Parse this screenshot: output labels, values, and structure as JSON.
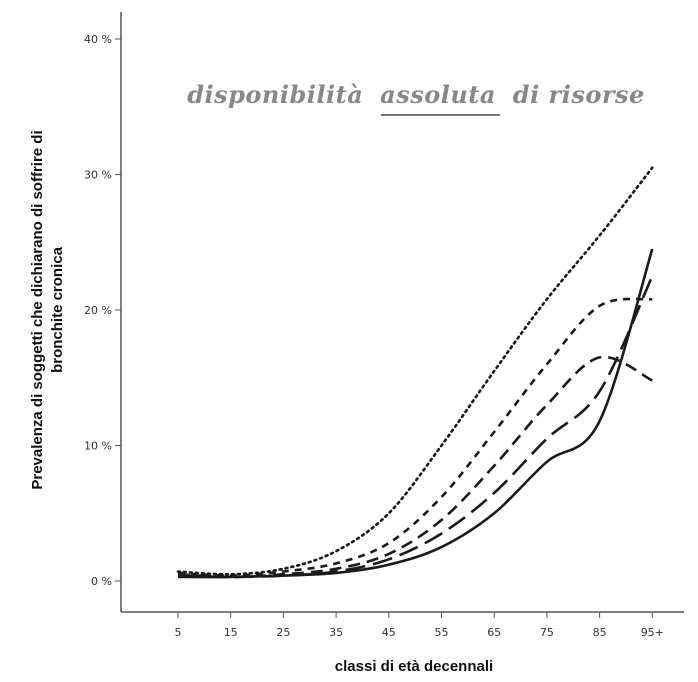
{
  "chart_data": {
    "type": "line",
    "title_parts": [
      "disponibilità",
      "assoluta",
      "di risorse"
    ],
    "xlabel": "classi di età decennali",
    "ylabel_lines": [
      "Prevalenza di soggetti che dichiarano di soffrire di",
      "bronchite cronica"
    ],
    "categories": [
      "5",
      "15",
      "25",
      "35",
      "45",
      "55",
      "65",
      "75",
      "85",
      "95+"
    ],
    "y_ticks": [
      "0 %",
      "10 %",
      "20 %",
      "30 %",
      "40 %"
    ],
    "ylim": [
      0,
      40
    ],
    "grid": false,
    "legend": "none",
    "series": [
      {
        "style": "dotted",
        "values": [
          0.7,
          0.5,
          0.9,
          2.2,
          5.0,
          10.0,
          15.5,
          20.8,
          25.5,
          30.5
        ]
      },
      {
        "style": "short-dash",
        "values": [
          0.6,
          0.4,
          0.7,
          1.3,
          2.8,
          6.2,
          11.0,
          16.0,
          20.3,
          20.8
        ]
      },
      {
        "style": "medium-dash",
        "values": [
          0.5,
          0.3,
          0.5,
          0.9,
          2.0,
          4.5,
          8.5,
          13.0,
          16.5,
          14.8
        ]
      },
      {
        "style": "long-dash",
        "values": [
          0.4,
          0.3,
          0.4,
          0.7,
          1.6,
          3.5,
          6.5,
          10.5,
          14.0,
          22.5
        ]
      },
      {
        "style": "solid",
        "values": [
          0.3,
          0.3,
          0.4,
          0.6,
          1.2,
          2.5,
          5.0,
          8.8,
          11.8,
          24.5
        ]
      }
    ]
  }
}
